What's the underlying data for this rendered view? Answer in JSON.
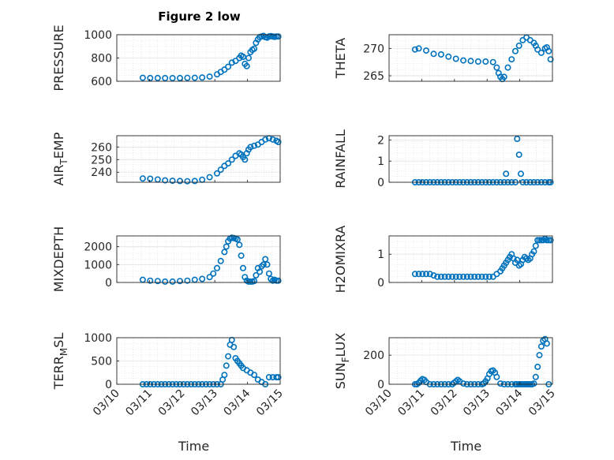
{
  "figure_title": "Figure 2 low",
  "x_axis_label": "Time",
  "x_tick_labels": [
    "03/10",
    "03/11",
    "03/12",
    "03/13",
    "03/14",
    "03/15"
  ],
  "colors": {
    "marker": "#0072BD",
    "axis": "#262626",
    "grid": "#dcdcdc"
  },
  "chart_data": [
    {
      "type": "scatter",
      "title": "Figure 2 low",
      "ylabel": "PRESSURE",
      "xlabel": "",
      "xlim": [
        1,
        5.4
      ],
      "ylim": [
        600,
        1000
      ],
      "yticks": [
        600,
        800,
        1000
      ],
      "x": [
        1.7,
        1.9,
        2.1,
        2.3,
        2.5,
        2.7,
        2.9,
        3.1,
        3.3,
        3.5,
        3.7,
        3.8,
        3.9,
        4.0,
        4.1,
        4.2,
        4.3,
        4.35,
        4.4,
        4.45,
        4.5,
        4.55,
        4.6,
        4.65,
        4.7,
        4.75,
        4.8,
        4.85,
        4.9,
        4.95,
        5.0,
        5.05,
        5.1,
        5.15,
        5.2,
        5.25,
        5.3,
        5.35
      ],
      "y": [
        630,
        628,
        628,
        627,
        627,
        628,
        629,
        630,
        632,
        640,
        660,
        680,
        700,
        725,
        760,
        775,
        800,
        820,
        810,
        750,
        730,
        800,
        850,
        870,
        880,
        930,
        960,
        980,
        985,
        990,
        980,
        975,
        985,
        988,
        985,
        982,
        985,
        985
      ]
    },
    {
      "type": "scatter",
      "title": "",
      "ylabel": "THETA",
      "xlabel": "",
      "xlim": [
        1,
        5.4
      ],
      "ylim": [
        264,
        272.5
      ],
      "yticks": [
        265,
        270
      ],
      "x": [
        1.7,
        1.8,
        2.0,
        2.2,
        2.4,
        2.6,
        2.8,
        3.0,
        3.2,
        3.4,
        3.6,
        3.8,
        3.9,
        3.95,
        4.0,
        4.05,
        4.1,
        4.2,
        4.3,
        4.4,
        4.5,
        4.6,
        4.7,
        4.8,
        4.9,
        4.95,
        5.0,
        5.1,
        5.2,
        5.25,
        5.3,
        5.35
      ],
      "y": [
        269.8,
        270.0,
        269.6,
        269.0,
        268.9,
        268.5,
        268.1,
        267.8,
        267.7,
        267.6,
        267.6,
        267.5,
        266.5,
        265.5,
        264.8,
        264.4,
        264.8,
        266.5,
        268.0,
        269.5,
        270.5,
        271.5,
        272.0,
        271.5,
        271.0,
        270.5,
        269.8,
        269.2,
        270.0,
        270.2,
        269.5,
        268.0
      ]
    },
    {
      "type": "scatter",
      "title": "",
      "ylabel": "AIR_TEMP",
      "xlabel": "",
      "xlim": [
        1,
        5.4
      ],
      "ylim": [
        232,
        269
      ],
      "yticks": [
        240,
        250,
        260
      ],
      "x": [
        1.7,
        1.9,
        2.1,
        2.3,
        2.5,
        2.7,
        2.9,
        3.1,
        3.3,
        3.5,
        3.7,
        3.8,
        3.9,
        4.0,
        4.1,
        4.2,
        4.3,
        4.35,
        4.4,
        4.45,
        4.5,
        4.55,
        4.6,
        4.7,
        4.8,
        4.9,
        5.0,
        5.1,
        5.2,
        5.3,
        5.35
      ],
      "y": [
        235,
        234.8,
        234.2,
        233.5,
        233.2,
        233,
        232.8,
        233,
        234,
        236,
        239,
        242,
        245,
        247,
        250,
        253,
        255,
        254,
        252,
        250,
        255,
        258,
        260,
        261,
        262,
        264,
        266,
        267,
        266,
        265,
        264
      ]
    },
    {
      "type": "scatter",
      "title": "",
      "ylabel": "RAINFALL",
      "xlabel": "",
      "xlim": [
        1,
        5.4
      ],
      "ylim": [
        0,
        2.2
      ],
      "yticks": [
        0,
        1,
        2
      ],
      "x": [
        1.7,
        1.8,
        1.9,
        2.0,
        2.1,
        2.2,
        2.3,
        2.4,
        2.5,
        2.6,
        2.7,
        2.8,
        2.9,
        3.0,
        3.1,
        3.2,
        3.3,
        3.4,
        3.5,
        3.6,
        3.7,
        3.8,
        3.9,
        4.0,
        4.1,
        4.15,
        4.2,
        4.3,
        4.4,
        4.45,
        4.5,
        4.55,
        4.6,
        4.7,
        4.8,
        4.9,
        5.0,
        5.1,
        5.2,
        5.3,
        5.35
      ],
      "y": [
        0,
        0,
        0,
        0,
        0,
        0,
        0,
        0,
        0,
        0,
        0,
        0,
        0,
        0,
        0,
        0,
        0,
        0,
        0,
        0,
        0,
        0,
        0,
        0,
        0,
        0.4,
        0,
        0,
        0,
        2.05,
        1.3,
        0.4,
        0,
        0,
        0,
        0,
        0,
        0,
        0,
        0,
        0
      ]
    },
    {
      "type": "scatter",
      "title": "",
      "ylabel": "MIXDEPTH",
      "xlabel": "",
      "xlim": [
        1,
        5.4
      ],
      "ylim": [
        0,
        2600
      ],
      "yticks": [
        0,
        1000,
        2000
      ],
      "x": [
        1.7,
        1.9,
        2.1,
        2.3,
        2.5,
        2.7,
        2.9,
        3.1,
        3.3,
        3.5,
        3.6,
        3.7,
        3.8,
        3.9,
        3.95,
        4.0,
        4.05,
        4.1,
        4.15,
        4.2,
        4.25,
        4.3,
        4.35,
        4.4,
        4.45,
        4.5,
        4.55,
        4.6,
        4.65,
        4.7,
        4.75,
        4.8,
        4.85,
        4.9,
        4.95,
        5.0,
        5.05,
        5.1,
        5.15,
        5.2,
        5.25,
        5.3,
        5.35
      ],
      "y": [
        150,
        100,
        80,
        50,
        50,
        80,
        100,
        150,
        200,
        300,
        500,
        800,
        1200,
        1700,
        2000,
        2300,
        2450,
        2500,
        2480,
        2450,
        2400,
        2100,
        1500,
        800,
        300,
        100,
        50,
        50,
        50,
        80,
        400,
        800,
        600,
        900,
        1000,
        1300,
        1000,
        500,
        200,
        100,
        150,
        100,
        100
      ]
    },
    {
      "type": "scatter",
      "title": "",
      "ylabel": "H2OMIXRA",
      "xlabel": "",
      "xlim": [
        1,
        5.4
      ],
      "ylim": [
        0,
        1.65
      ],
      "yticks": [
        0,
        1
      ],
      "x": [
        1.7,
        1.8,
        1.9,
        2.0,
        2.1,
        2.2,
        2.3,
        2.4,
        2.5,
        2.6,
        2.7,
        2.8,
        2.9,
        3.0,
        3.1,
        3.2,
        3.3,
        3.4,
        3.5,
        3.6,
        3.7,
        3.8,
        3.9,
        4.0,
        4.05,
        4.1,
        4.15,
        4.2,
        4.25,
        4.3,
        4.35,
        4.4,
        4.45,
        4.5,
        4.55,
        4.6,
        4.65,
        4.7,
        4.75,
        4.8,
        4.85,
        4.9,
        4.95,
        5.0,
        5.05,
        5.1,
        5.15,
        5.2,
        5.25,
        5.3,
        5.35
      ],
      "y": [
        0.3,
        0.3,
        0.3,
        0.3,
        0.3,
        0.25,
        0.2,
        0.2,
        0.2,
        0.2,
        0.2,
        0.2,
        0.2,
        0.2,
        0.2,
        0.2,
        0.2,
        0.2,
        0.2,
        0.2,
        0.2,
        0.2,
        0.3,
        0.4,
        0.5,
        0.6,
        0.7,
        0.8,
        0.9,
        1.0,
        0.85,
        0.7,
        0.8,
        0.6,
        0.65,
        0.8,
        0.9,
        0.85,
        0.8,
        0.85,
        1.0,
        1.1,
        1.3,
        1.5,
        1.5,
        1.5,
        1.5,
        1.55,
        1.5,
        1.5,
        1.5
      ]
    },
    {
      "type": "scatter",
      "title": "",
      "ylabel": "TERR_MSL",
      "xlabel": "Time",
      "xlim": [
        1,
        5.4
      ],
      "ylim": [
        0,
        1000
      ],
      "yticks": [
        0,
        500,
        1000
      ],
      "x": [
        1.7,
        1.8,
        1.9,
        2.0,
        2.1,
        2.2,
        2.3,
        2.4,
        2.5,
        2.6,
        2.7,
        2.8,
        2.9,
        3.0,
        3.1,
        3.2,
        3.3,
        3.4,
        3.5,
        3.6,
        3.7,
        3.8,
        3.85,
        3.9,
        3.95,
        4.0,
        4.05,
        4.1,
        4.15,
        4.2,
        4.25,
        4.3,
        4.35,
        4.4,
        4.5,
        4.6,
        4.7,
        4.8,
        4.9,
        5.0,
        5.1,
        5.2,
        5.3,
        5.35
      ],
      "y": [
        0,
        0,
        0,
        0,
        0,
        0,
        0,
        0,
        0,
        0,
        0,
        0,
        0,
        0,
        0,
        0,
        0,
        0,
        0,
        0,
        0,
        0,
        100,
        200,
        400,
        600,
        850,
        950,
        800,
        560,
        500,
        450,
        400,
        350,
        300,
        250,
        200,
        100,
        50,
        0,
        150,
        150,
        150,
        150
      ]
    },
    {
      "type": "scatter",
      "title": "",
      "ylabel": "SUN_FLUX",
      "xlabel": "Time",
      "xlim": [
        1,
        5.4
      ],
      "ylim": [
        0,
        320
      ],
      "yticks": [
        0,
        200
      ],
      "x": [
        1.7,
        1.75,
        1.8,
        1.85,
        1.9,
        1.95,
        2.0,
        2.1,
        2.2,
        2.3,
        2.4,
        2.5,
        2.6,
        2.7,
        2.75,
        2.8,
        2.85,
        2.9,
        3.0,
        3.1,
        3.2,
        3.3,
        3.4,
        3.5,
        3.55,
        3.6,
        3.65,
        3.7,
        3.75,
        3.8,
        3.85,
        3.9,
        4.0,
        4.1,
        4.2,
        4.3,
        4.4,
        4.45,
        4.5,
        4.55,
        4.6,
        4.65,
        4.7,
        4.75,
        4.8,
        4.85,
        4.9,
        4.95,
        5.0,
        5.05,
        5.1,
        5.15,
        5.2,
        5.25,
        5.3
      ],
      "y": [
        0,
        0,
        10,
        25,
        35,
        30,
        15,
        0,
        0,
        0,
        0,
        0,
        0,
        0,
        10,
        20,
        30,
        20,
        5,
        0,
        0,
        0,
        0,
        0,
        5,
        20,
        40,
        70,
        90,
        95,
        80,
        50,
        5,
        0,
        0,
        0,
        0,
        0,
        0,
        0,
        0,
        0,
        0,
        0,
        0,
        0,
        5,
        50,
        120,
        200,
        260,
        300,
        310,
        280,
        0
      ]
    }
  ]
}
